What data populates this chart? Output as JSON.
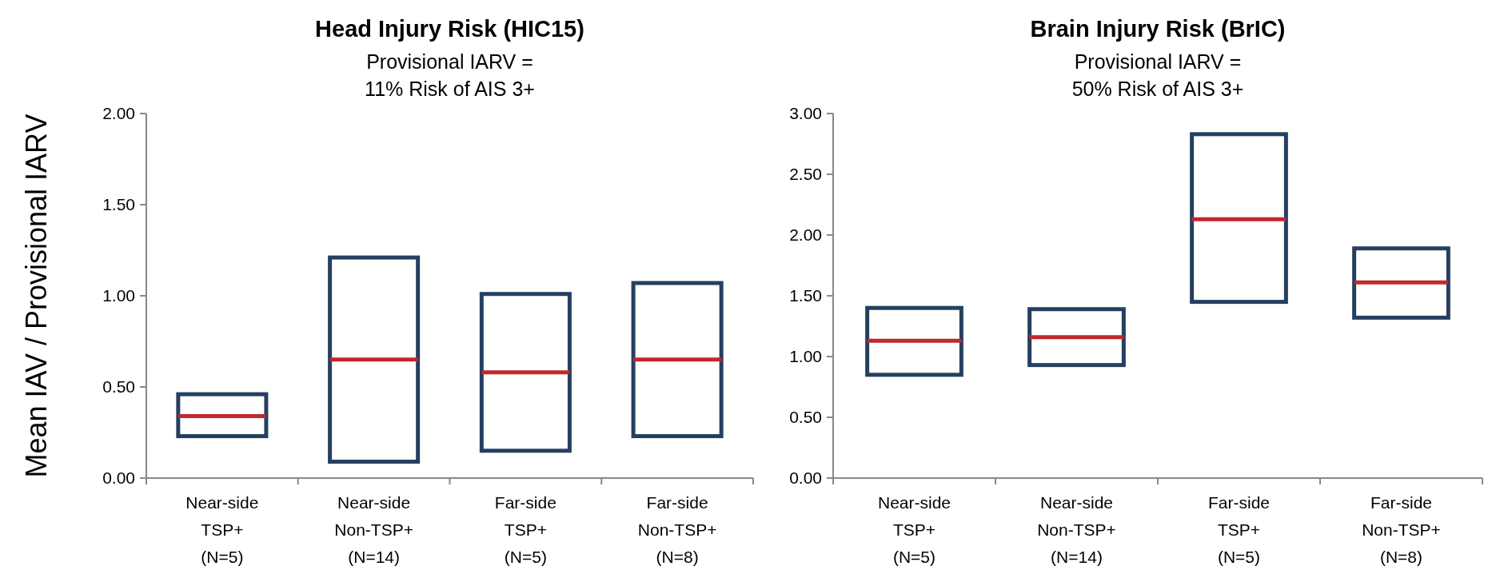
{
  "chart_data": [
    {
      "type": "box",
      "title": "Head Injury Risk (HIC15)",
      "subtitle": "Provisional IARV =\n11% Risk of AIS 3+",
      "ylabel": "Mean IAV / Provisional IARV",
      "categories": [
        "Near-side\nTSP+\n(N=5)",
        "Near-side\nNon-TSP+\n(N=14)",
        "Far-side\nTSP+\n(N=5)",
        "Far-side\nNon-TSP+\n(N=8)"
      ],
      "ylim": [
        0,
        2
      ],
      "yticks": [
        {
          "value": 0,
          "label": "0.00"
        },
        {
          "value": 0.5,
          "label": "0.50"
        },
        {
          "value": 1,
          "label": "1.00"
        },
        {
          "value": 1.5,
          "label": "1.50"
        },
        {
          "value": 2,
          "label": "2.00"
        }
      ],
      "grid": false,
      "series": [
        {
          "color": "#253f60",
          "boxes": [
            {
              "low": 0.23,
              "q1": 0.23,
              "median": 0.34,
              "q3": 0.46,
              "high": 0.46
            },
            {
              "low": 0.09,
              "q1": 0.09,
              "median": 0.65,
              "q3": 1.21,
              "high": 1.21
            },
            {
              "low": 0.15,
              "q1": 0.15,
              "median": 0.58,
              "q3": 1.01,
              "high": 1.01
            },
            {
              "low": 0.23,
              "q1": 0.23,
              "median": 0.65,
              "q3": 1.07,
              "high": 1.07
            }
          ]
        }
      ]
    },
    {
      "type": "box",
      "title": "Brain Injury Risk (BrIC)",
      "subtitle": "Provisional IARV =\n50% Risk of AIS 3+",
      "categories": [
        "Near-side\nTSP+\n(N=5)",
        "Near-side\nNon-TSP+\n(N=14)",
        "Far-side\nTSP+\n(N=5)",
        "Far-side\nNon-TSP+\n(N=8)"
      ],
      "ylim": [
        0,
        3
      ],
      "yticks": [
        {
          "value": 0,
          "label": "0.00"
        },
        {
          "value": 0.5,
          "label": "0.50"
        },
        {
          "value": 1,
          "label": "1.00"
        },
        {
          "value": 1.5,
          "label": "1.50"
        },
        {
          "value": 2,
          "label": "2.00"
        },
        {
          "value": 2.5,
          "label": "2.50"
        },
        {
          "value": 3,
          "label": "3.00"
        }
      ],
      "grid": false,
      "series": [
        {
          "color": "#253f60",
          "boxes": [
            {
              "low": 0.85,
              "q1": 0.85,
              "median": 1.13,
              "q3": 1.4,
              "high": 1.4
            },
            {
              "low": 0.93,
              "q1": 0.93,
              "median": 1.16,
              "q3": 1.39,
              "high": 1.39
            },
            {
              "low": 1.45,
              "q1": 1.45,
              "median": 2.13,
              "q3": 2.83,
              "high": 2.83
            },
            {
              "low": 1.32,
              "q1": 1.32,
              "median": 1.61,
              "q3": 1.89,
              "high": 1.89
            }
          ]
        }
      ]
    }
  ]
}
